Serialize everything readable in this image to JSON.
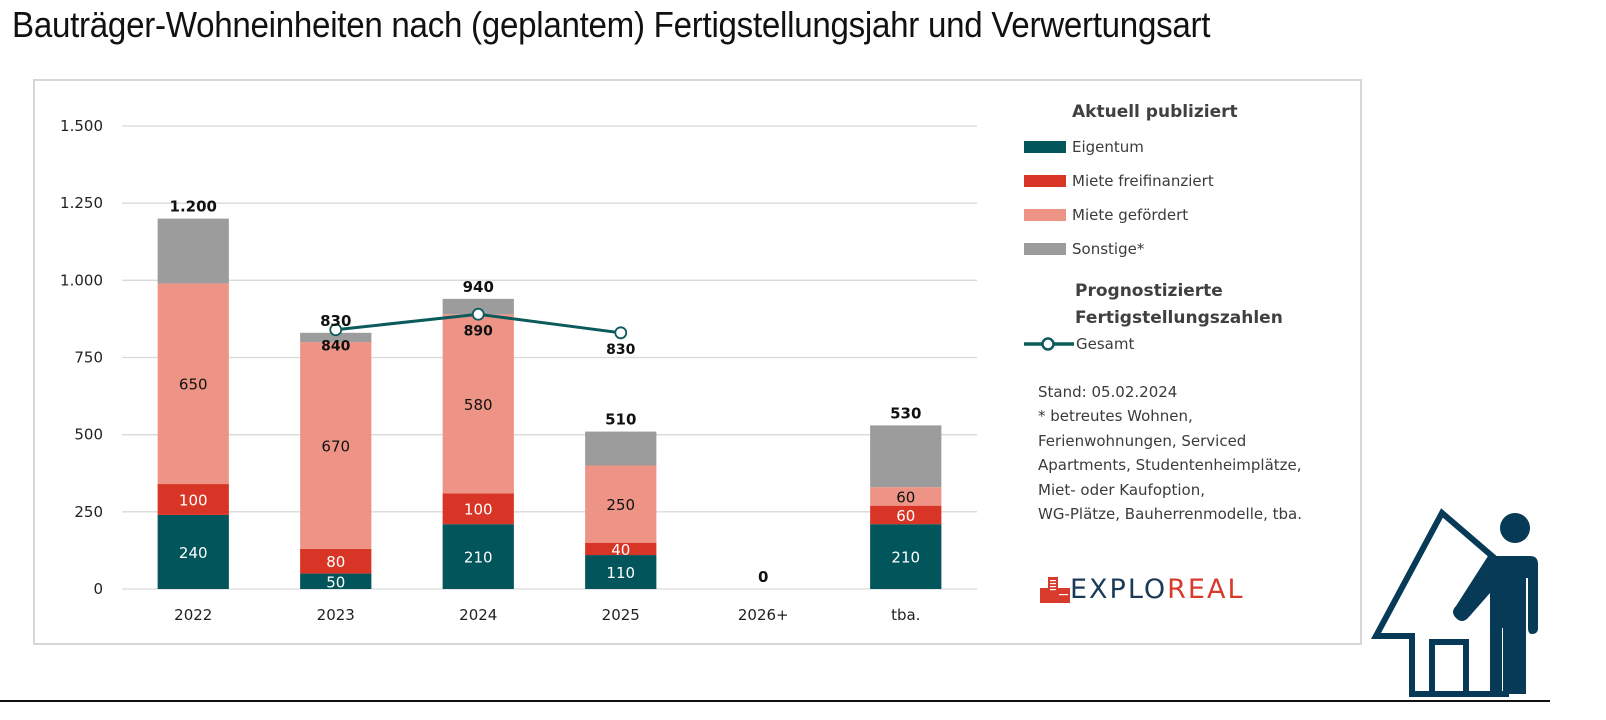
{
  "page": {
    "title": "Bauträger-Wohneinheiten nach (geplantem) Fertigstellungsjahr und Verwertungsart"
  },
  "chart_data": {
    "type": "bar",
    "stacked": true,
    "title": "Bauträger-Wohneinheiten nach (geplantem) Fertigstellungsjahr und Verwertungsart",
    "xlabel": "",
    "ylabel": "",
    "ylim": [
      0,
      1500
    ],
    "yticks": [
      0,
      250,
      500,
      750,
      1000,
      1250,
      1500
    ],
    "ytick_labels": [
      "0",
      "250",
      "500",
      "750",
      "1.000",
      "1.250",
      "1.500"
    ],
    "grid": true,
    "categories": [
      "2022",
      "2023",
      "2024",
      "2025",
      "2026+",
      "tba."
    ],
    "series": [
      {
        "name": "Eigentum",
        "color": "#02555b",
        "label_color": "#ffffff",
        "values": [
          240,
          50,
          210,
          110,
          0,
          210
        ]
      },
      {
        "name": "Miete freifinanziert",
        "color": "#d93526",
        "label_color": "#ffffff",
        "values": [
          100,
          80,
          100,
          40,
          0,
          60
        ]
      },
      {
        "name": "Miete gefördert",
        "color": "#ed9486",
        "label_color": "#111111",
        "values": [
          650,
          670,
          580,
          250,
          0,
          60
        ]
      },
      {
        "name": "Sonstige*",
        "color": "#9c9c9c",
        "label_color": "#111111",
        "values": [
          210,
          30,
          50,
          110,
          0,
          200
        ],
        "show_labels": false
      }
    ],
    "totals": [
      1200,
      830,
      940,
      510,
      0,
      530
    ],
    "total_labels": [
      "1.200",
      "830",
      "940",
      "510",
      "0",
      "530"
    ],
    "line_series": {
      "name": "Gesamt",
      "group": "Prognostizierte Fertigstellungszahlen",
      "color": "#0c5a5c",
      "categories": [
        "2023",
        "2024",
        "2025"
      ],
      "values": [
        840,
        890,
        830
      ],
      "labels": [
        "840",
        "890",
        "830"
      ]
    },
    "legend": {
      "placement": "right",
      "heading": "Aktuell publiziert",
      "heading2": "Prognostizierte Fertigstellungszahlen"
    }
  },
  "legend": {
    "heading": "Aktuell publiziert",
    "items": [
      {
        "label": "Eigentum",
        "color": "#02555b"
      },
      {
        "label": "Miete freifinanziert",
        "color": "#d93526"
      },
      {
        "label": "Miete gefördert",
        "color": "#ed9486"
      },
      {
        "label": "Sonstige*",
        "color": "#9c9c9c"
      }
    ],
    "heading2_line1": "Prognostizierte",
    "heading2_line2": "Fertigstellungszahlen",
    "line_item": "Gesamt"
  },
  "note": {
    "lines": [
      "Stand: 05.02.2024",
      "* betreutes Wohnen,",
      "Ferienwohnungen, Serviced",
      "Apartments, Studentenheimplätze,",
      "Miet- oder Kaufoption,",
      "WG-Plätze, Bauherrenmodelle, tba."
    ]
  },
  "logo": {
    "part1": "EXPLO",
    "part2": "REAL",
    "icon": "building-icon"
  },
  "decor": {
    "icon": "house-person-icon",
    "color": "#073a56"
  }
}
